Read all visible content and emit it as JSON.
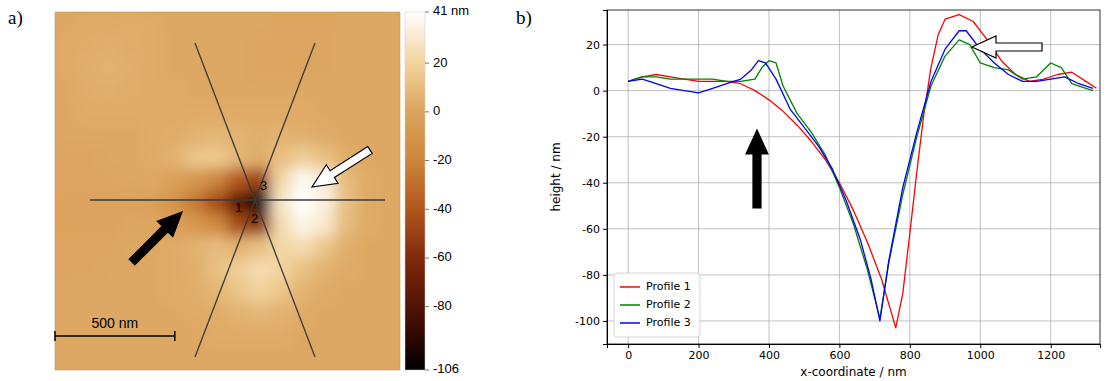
{
  "chart_data": [
    {
      "type": "heatmap",
      "title": "a)",
      "xlim": [
        0,
        1440
      ],
      "ylim": [
        0,
        1440
      ],
      "tick_labels": false,
      "cells": [
        [
          2,
          3,
          3,
          4,
          3,
          2,
          2,
          2,
          2,
          2,
          1,
          1,
          1,
          2,
          2,
          2
        ],
        [
          3,
          4,
          5,
          4,
          3,
          2,
          2,
          2,
          2,
          1,
          1,
          1,
          1,
          2,
          2,
          2
        ],
        [
          3,
          5,
          6,
          5,
          3,
          2,
          2,
          2,
          2,
          1,
          1,
          1,
          1,
          2,
          2,
          2
        ],
        [
          2,
          4,
          5,
          4,
          3,
          3,
          2,
          2,
          2,
          2,
          2,
          2,
          2,
          2,
          2,
          2
        ],
        [
          2,
          3,
          3,
          3,
          3,
          3,
          3,
          3,
          3,
          3,
          3,
          3,
          2,
          2,
          2,
          2
        ],
        [
          2,
          2,
          2,
          2,
          3,
          4,
          6,
          8,
          6,
          5,
          6,
          5,
          3,
          2,
          2,
          2
        ],
        [
          1,
          1,
          2,
          2,
          3,
          6,
          14,
          16,
          8,
          4,
          12,
          18,
          12,
          4,
          2,
          2
        ],
        [
          1,
          1,
          1,
          2,
          2,
          -2,
          -8,
          -20,
          -40,
          -50,
          22,
          38,
          32,
          10,
          3,
          2
        ],
        [
          0,
          0,
          0,
          0,
          -2,
          -10,
          -25,
          -45,
          -75,
          -106,
          30,
          41,
          34,
          12,
          3,
          2
        ],
        [
          0,
          0,
          0,
          1,
          1,
          -2,
          -8,
          -18,
          -45,
          -55,
          24,
          36,
          30,
          10,
          3,
          2
        ],
        [
          1,
          1,
          1,
          2,
          2,
          3,
          6,
          10,
          6,
          12,
          22,
          24,
          14,
          5,
          2,
          2
        ],
        [
          1,
          1,
          2,
          2,
          2,
          3,
          5,
          12,
          18,
          24,
          20,
          12,
          6,
          3,
          2,
          2
        ],
        [
          2,
          2,
          2,
          2,
          2,
          3,
          4,
          8,
          14,
          20,
          14,
          6,
          3,
          2,
          2,
          2
        ],
        [
          2,
          2,
          2,
          2,
          2,
          2,
          3,
          4,
          6,
          8,
          6,
          3,
          2,
          2,
          2,
          2
        ],
        [
          2,
          2,
          2,
          2,
          2,
          2,
          2,
          3,
          3,
          3,
          3,
          2,
          2,
          2,
          2,
          2
        ],
        [
          2,
          2,
          2,
          2,
          2,
          2,
          2,
          2,
          2,
          2,
          2,
          2,
          2,
          2,
          2,
          2
        ]
      ],
      "colorbar_lim": [
        -106,
        41
      ],
      "colorbar_ticks": [
        {
          "value": 41,
          "label": "41 nm"
        },
        20,
        0,
        -20,
        -40,
        -60,
        -80,
        -106
      ],
      "scale_bar": {
        "value": 500,
        "label": "500 nm"
      },
      "annotations": [
        "1",
        "2",
        "3"
      ]
    },
    {
      "type": "line",
      "title": "b)",
      "xlabel": "x-coordinate / nm",
      "ylabel": "height / nm",
      "xlim": [
        -60,
        1340
      ],
      "ylim": [
        -110,
        35
      ],
      "xticks": [
        0,
        200,
        400,
        600,
        800,
        1000,
        1200
      ],
      "yticks": [
        -100,
        -80,
        -60,
        -40,
        -20,
        0,
        20
      ],
      "grid": true,
      "legend": "lower left",
      "series": [
        {
          "name": "Profile 1",
          "color": "#ff0000",
          "x": [
            0,
            40,
            80,
            120,
            160,
            200,
            240,
            280,
            320,
            360,
            400,
            440,
            480,
            520,
            560,
            600,
            640,
            680,
            720,
            760,
            780,
            800,
            820,
            840,
            860,
            880,
            900,
            940,
            980,
            1020,
            1060,
            1100,
            1140,
            1180,
            1220,
            1260,
            1300,
            1330
          ],
          "values": [
            4,
            6,
            7,
            6,
            5,
            4,
            4,
            4,
            3,
            0,
            -4,
            -9,
            -15,
            -22,
            -30,
            -40,
            -52,
            -66,
            -82,
            -103,
            -88,
            -62,
            -35,
            -10,
            10,
            24,
            31,
            33,
            30,
            22,
            13,
            7,
            4,
            5,
            7,
            8,
            4,
            1
          ]
        },
        {
          "name": "Profile 2",
          "color": "#008000",
          "x": [
            0,
            40,
            80,
            120,
            160,
            200,
            240,
            280,
            320,
            360,
            380,
            400,
            420,
            440,
            480,
            520,
            560,
            600,
            640,
            680,
            715,
            740,
            780,
            820,
            860,
            900,
            940,
            970,
            1000,
            1040,
            1080,
            1120,
            1160,
            1200,
            1230,
            1260,
            1300,
            1320
          ],
          "values": [
            4,
            6,
            6,
            5,
            5,
            5,
            5,
            4,
            4,
            5,
            10,
            13,
            12,
            2,
            -10,
            -18,
            -28,
            -42,
            -58,
            -78,
            -99,
            -75,
            -45,
            -20,
            2,
            15,
            22,
            20,
            12,
            10,
            9,
            5,
            6,
            12,
            10,
            3,
            1,
            0
          ]
        },
        {
          "name": "Profile 3",
          "color": "#0000ff",
          "x": [
            0,
            40,
            80,
            120,
            160,
            200,
            240,
            280,
            320,
            350,
            370,
            390,
            420,
            460,
            500,
            540,
            580,
            620,
            660,
            690,
            715,
            740,
            780,
            820,
            860,
            900,
            940,
            960,
            1000,
            1040,
            1080,
            1120,
            1160,
            1200,
            1240,
            1280,
            1320
          ],
          "values": [
            4,
            5,
            3,
            1,
            0,
            -1,
            1,
            3,
            5,
            9,
            13,
            12,
            5,
            -8,
            -16,
            -24,
            -34,
            -48,
            -65,
            -82,
            -100,
            -74,
            -42,
            -18,
            4,
            18,
            26,
            26,
            18,
            12,
            7,
            4,
            4,
            5,
            6,
            3,
            1
          ]
        }
      ]
    }
  ]
}
